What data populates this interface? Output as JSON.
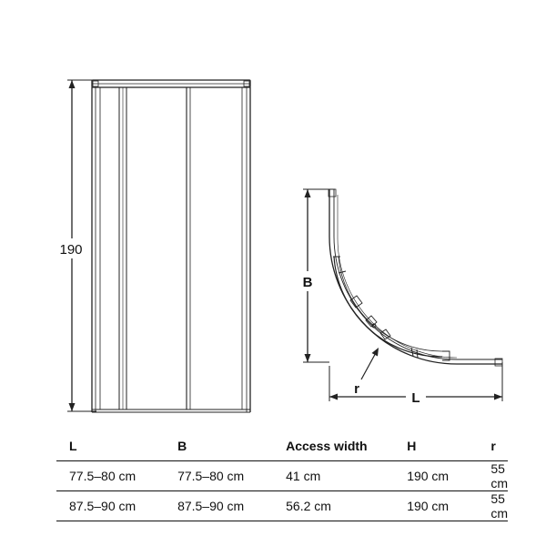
{
  "front_view": {
    "height_label": "190"
  },
  "plan_view": {
    "b_label": "B",
    "l_label": "L",
    "r_label": "r"
  },
  "table": {
    "headers": [
      "L",
      "B",
      "Access width",
      "H",
      "r"
    ],
    "rows": [
      [
        "77.5–80 cm",
        "77.5–80 cm",
        "41 cm",
        "190 cm",
        "55 cm"
      ],
      [
        "87.5–90 cm",
        "87.5–90 cm",
        "56.2 cm",
        "190 cm",
        "55 cm"
      ]
    ]
  }
}
